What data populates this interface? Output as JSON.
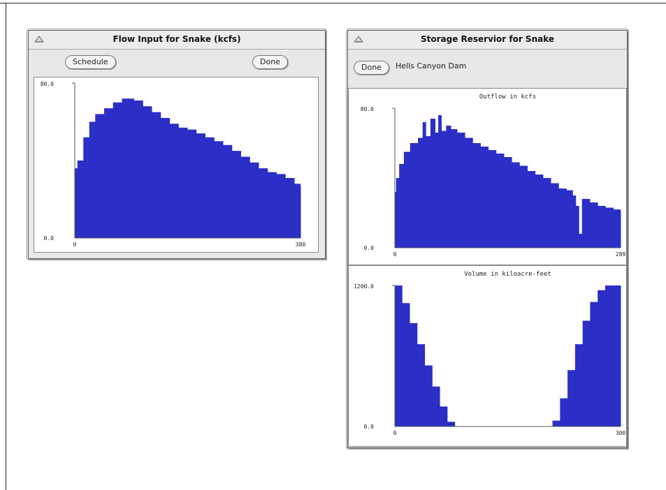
{
  "flow_window": {
    "title": "Flow Input for Snake (kcfs)",
    "schedule_label": "Schedule",
    "done_label": "Done"
  },
  "storage_window": {
    "title": "Storage Reservior for Snake",
    "done_label": "Done",
    "location_label": "Hells Canyon Dam"
  },
  "colors": {
    "fill": "#2b2fc6",
    "axis": "#555555"
  },
  "chart_data": [
    {
      "type": "area",
      "title": "",
      "ylim": [
        0,
        80
      ],
      "xlim": [
        0,
        380
      ],
      "y_tick_labels": [
        "80.0",
        "0.0"
      ],
      "x_tick_labels": [
        "0",
        "380"
      ],
      "x": [
        0,
        5,
        15,
        25,
        35,
        50,
        65,
        80,
        90,
        100,
        115,
        130,
        145,
        160,
        175,
        190,
        205,
        220,
        235,
        250,
        265,
        280,
        295,
        310,
        325,
        340,
        355,
        370,
        380
      ],
      "values": [
        36,
        40,
        52,
        60,
        64,
        67,
        70,
        72,
        72,
        71,
        68,
        65,
        62,
        59,
        57,
        56,
        54,
        52,
        50,
        48,
        45,
        42,
        39,
        36,
        34,
        33,
        31,
        28,
        27
      ]
    },
    {
      "type": "area",
      "title": "Outflow in kcfs",
      "ylim": [
        0,
        80
      ],
      "xlim": [
        0,
        289
      ],
      "y_tick_labels": [
        "80.0",
        "0.0"
      ],
      "x_tick_labels": [
        "0",
        "289"
      ],
      "x": [
        0,
        2,
        6,
        12,
        20,
        30,
        36,
        40,
        46,
        52,
        56,
        60,
        66,
        72,
        80,
        90,
        100,
        110,
        120,
        130,
        140,
        150,
        160,
        170,
        180,
        190,
        200,
        210,
        220,
        228,
        232,
        236,
        240,
        250,
        260,
        270,
        280,
        289
      ],
      "values": [
        32,
        40,
        48,
        55,
        60,
        63,
        72,
        64,
        74,
        66,
        76,
        67,
        70,
        68,
        66,
        63,
        60,
        58,
        56,
        54,
        52,
        49,
        47,
        44,
        42,
        40,
        37,
        34,
        33,
        30,
        24,
        8,
        28,
        26,
        24,
        23,
        22,
        21
      ]
    },
    {
      "type": "area",
      "title": "Volume in kiloacre-feet",
      "ylim": [
        0,
        1200
      ],
      "xlim": [
        0,
        300
      ],
      "y_tick_labels": [
        "1200.0",
        "0.0"
      ],
      "x_tick_labels": [
        "0",
        "300"
      ],
      "x": [
        0,
        10,
        20,
        30,
        40,
        50,
        60,
        70,
        80,
        90,
        100,
        110,
        120,
        130,
        140,
        150,
        160,
        170,
        180,
        190,
        200,
        210,
        220,
        230,
        240,
        250,
        260,
        270,
        280,
        290,
        300
      ],
      "values": [
        1200,
        1050,
        880,
        700,
        520,
        340,
        170,
        40,
        0,
        0,
        0,
        0,
        0,
        0,
        0,
        0,
        0,
        0,
        0,
        0,
        0,
        50,
        240,
        480,
        700,
        900,
        1060,
        1160,
        1200,
        1200,
        1200
      ]
    }
  ]
}
